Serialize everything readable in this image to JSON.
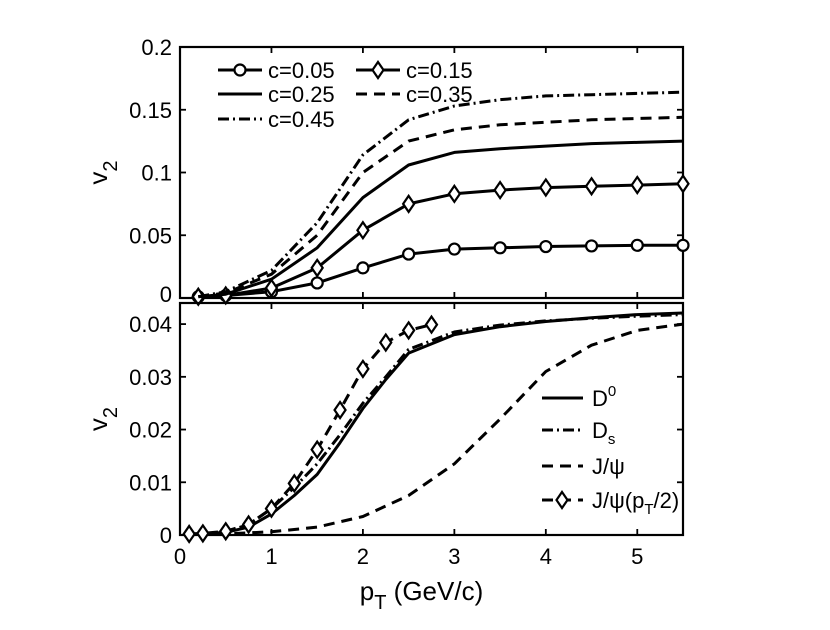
{
  "chart_data": [
    {
      "type": "line",
      "panel": "top",
      "xlim": [
        0,
        5.5
      ],
      "ylim": [
        0,
        0.2
      ],
      "xlabel": "",
      "ylabel": "v",
      "ylabel_sub": "2",
      "yticks": [
        "0",
        "0.05",
        "0.1",
        "0.15",
        "0.2"
      ],
      "ytick_values": [
        0,
        0.05,
        0.1,
        0.15,
        0.2
      ],
      "series": [
        {
          "name": "c=0.05",
          "style": "solid-circle",
          "x": [
            0.2,
            0.5,
            1.0,
            1.5,
            2.0,
            2.5,
            3.0,
            3.5,
            4.0,
            4.5,
            5.0,
            5.5
          ],
          "y": [
            0.001,
            0.002,
            0.005,
            0.012,
            0.024,
            0.035,
            0.039,
            0.04,
            0.041,
            0.0415,
            0.042,
            0.042
          ]
        },
        {
          "name": "c=0.15",
          "style": "solid-diamond",
          "x": [
            0.2,
            0.5,
            1.0,
            1.5,
            2.0,
            2.5,
            3.0,
            3.5,
            4.0,
            4.5,
            5.0,
            5.5
          ],
          "y": [
            0.001,
            0.002,
            0.008,
            0.024,
            0.054,
            0.075,
            0.083,
            0.086,
            0.088,
            0.089,
            0.09,
            0.091
          ]
        },
        {
          "name": "c=0.25",
          "style": "solid",
          "x": [
            0.2,
            0.5,
            1.0,
            1.5,
            2.0,
            2.5,
            3.0,
            3.5,
            4.0,
            4.5,
            5.0,
            5.5
          ],
          "y": [
            0.001,
            0.003,
            0.015,
            0.04,
            0.08,
            0.106,
            0.116,
            0.119,
            0.121,
            0.123,
            0.124,
            0.125
          ]
        },
        {
          "name": "c=0.35",
          "style": "dashed",
          "x": [
            0.2,
            0.5,
            1.0,
            1.5,
            2.0,
            2.5,
            3.0,
            3.5,
            4.0,
            4.5,
            5.0,
            5.5
          ],
          "y": [
            0.001,
            0.004,
            0.019,
            0.05,
            0.1,
            0.125,
            0.134,
            0.138,
            0.14,
            0.142,
            0.143,
            0.144
          ]
        },
        {
          "name": "c=0.45",
          "style": "dashdot",
          "x": [
            0.2,
            0.5,
            1.0,
            1.5,
            2.0,
            2.5,
            3.0,
            3.5,
            4.0,
            4.5,
            5.0,
            5.5
          ],
          "y": [
            0.001,
            0.005,
            0.022,
            0.06,
            0.114,
            0.142,
            0.153,
            0.158,
            0.161,
            0.162,
            0.163,
            0.164
          ]
        }
      ],
      "legend": {
        "placement": "top-left"
      }
    },
    {
      "type": "line",
      "panel": "bottom",
      "xlim": [
        0,
        5.5
      ],
      "ylim": [
        0,
        0.044
      ],
      "xlabel": "p",
      "xlabel_sub": "T",
      "xlabel_tail": " (GeV/c)",
      "ylabel": "v",
      "ylabel_sub": "2",
      "xticks": [
        "0",
        "1",
        "2",
        "3",
        "4",
        "5"
      ],
      "xtick_values": [
        0,
        1,
        2,
        3,
        4,
        5
      ],
      "yticks": [
        "0",
        "0.01",
        "0.02",
        "0.03",
        "0.04"
      ],
      "ytick_values": [
        0,
        0.01,
        0.02,
        0.03,
        0.04
      ],
      "series": [
        {
          "name": "D0",
          "label_main": "D",
          "label_sup": "0",
          "style": "solid",
          "x": [
            0.2,
            0.5,
            0.75,
            1.0,
            1.25,
            1.5,
            1.75,
            2.0,
            2.25,
            2.5,
            3.0,
            3.5,
            4.0,
            4.5,
            5.0,
            5.5
          ],
          "y": [
            0.0002,
            0.0005,
            0.0015,
            0.004,
            0.0075,
            0.0115,
            0.0175,
            0.024,
            0.0295,
            0.0345,
            0.038,
            0.0395,
            0.0405,
            0.0412,
            0.0418,
            0.0421
          ]
        },
        {
          "name": "Ds",
          "label_main": "D",
          "label_sub": "s",
          "style": "dashdot",
          "x": [
            0.2,
            0.5,
            0.75,
            1.0,
            1.25,
            1.5,
            1.75,
            2.0,
            2.25,
            2.5,
            3.0,
            3.5,
            4.0,
            4.5,
            5.0,
            5.5
          ],
          "y": [
            0.0002,
            0.0006,
            0.002,
            0.005,
            0.009,
            0.0135,
            0.019,
            0.025,
            0.03,
            0.0352,
            0.0385,
            0.0398,
            0.0406,
            0.0411,
            0.0415,
            0.0418
          ]
        },
        {
          "name": "J/ψ",
          "label_main": "J/ψ",
          "style": "dashed",
          "x": [
            0.2,
            0.5,
            1.0,
            1.5,
            2.0,
            2.5,
            3.0,
            3.5,
            4.0,
            4.5,
            5.0,
            5.5
          ],
          "y": [
            0.0001,
            0.0002,
            0.0006,
            0.0015,
            0.0035,
            0.0075,
            0.0135,
            0.022,
            0.031,
            0.036,
            0.0388,
            0.04
          ]
        },
        {
          "name": "J/ψ(pT/2)",
          "label_main": "J/ψ(p",
          "label_sub": "T",
          "label_tail": "/2)",
          "style": "dashed-diamond",
          "x": [
            0.1,
            0.25,
            0.5,
            0.75,
            1.0,
            1.25,
            1.5,
            1.75,
            2.0,
            2.25,
            2.5,
            2.75
          ],
          "y": [
            0.0002,
            0.0003,
            0.0007,
            0.002,
            0.005,
            0.0098,
            0.0162,
            0.0237,
            0.0315,
            0.0365,
            0.0388,
            0.0399
          ]
        }
      ],
      "legend": {
        "placement": "bottom-right"
      }
    }
  ]
}
